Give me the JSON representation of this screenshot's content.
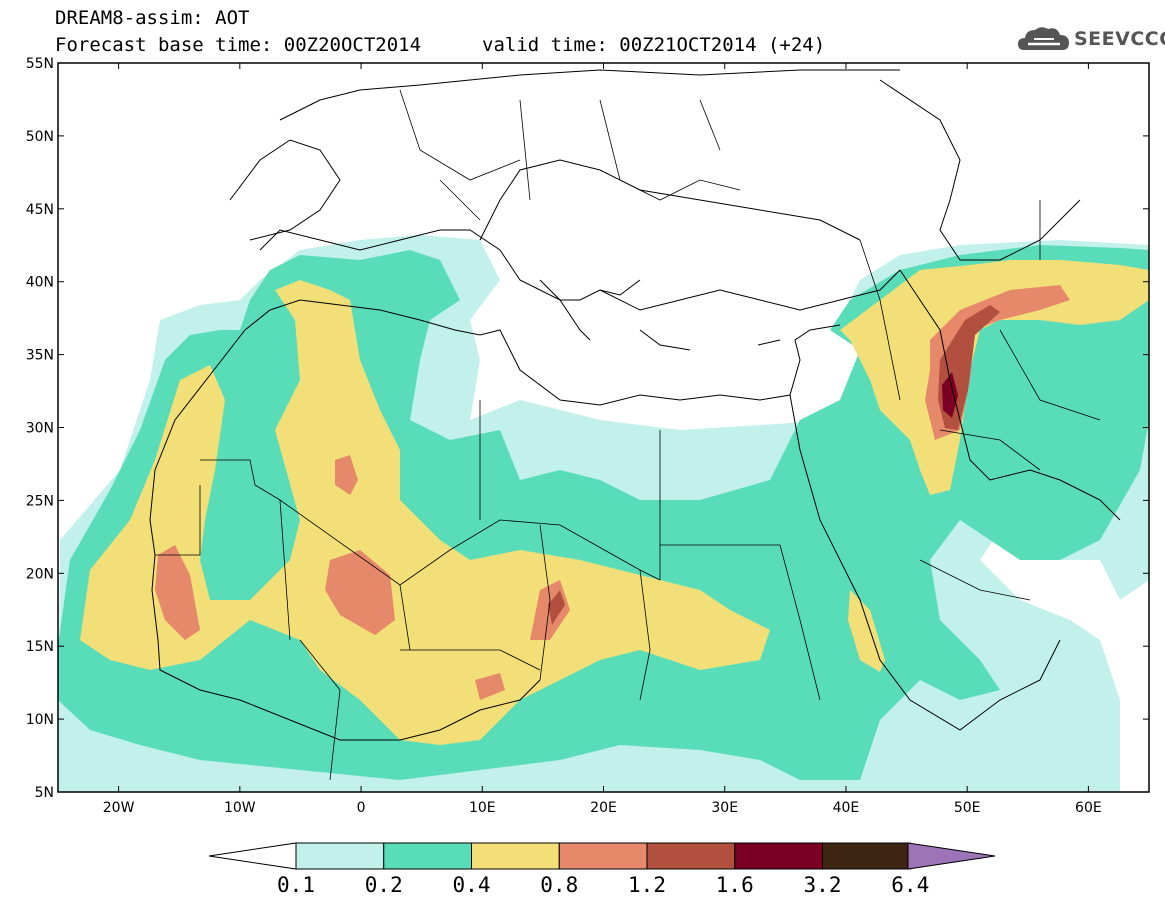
{
  "header": {
    "title": "DREAM8-assim: AOT",
    "base_time": "Forecast base time: 00Z20OCT2014",
    "valid_time": "valid time: 00Z21OCT2014 (+24)"
  },
  "logo": {
    "text": "SEEVCCC",
    "icon": "cloud-icon"
  },
  "map": {
    "variable": "AOT",
    "lat_range": [
      5,
      55
    ],
    "lon_range": [
      -25,
      65
    ],
    "lat_labels": [
      "55N",
      "50N",
      "45N",
      "40N",
      "35N",
      "30N",
      "25N",
      "20N",
      "15N",
      "10N",
      "5N"
    ],
    "lon_labels": [
      "20W",
      "10W",
      "0",
      "10E",
      "20E",
      "30E",
      "40E",
      "50E",
      "60E"
    ]
  },
  "colorbar": {
    "levels": [
      "0.1",
      "0.2",
      "0.4",
      "0.8",
      "1.2",
      "1.6",
      "3.2",
      "6.4"
    ],
    "colors": [
      "#c2f0ea",
      "#59ddb9",
      "#f3df78",
      "#e5896a",
      "#b2503f",
      "#7c0025",
      "#3e2513",
      "#9d74b8"
    ],
    "under_color": "#ffffff"
  }
}
